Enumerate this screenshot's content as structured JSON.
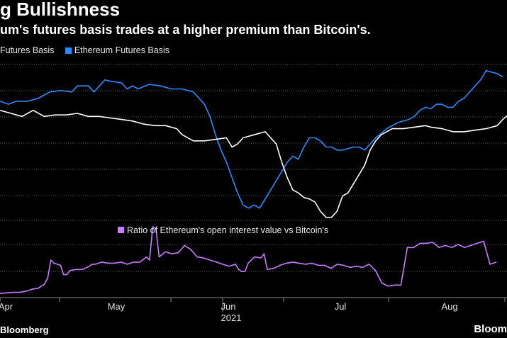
{
  "header": {
    "title": "g Bullishness",
    "subtitle": "um's futures basis trades at a higher premium than Bitcoin's."
  },
  "footer": {
    "source": "Bloomberg",
    "brand": "Bloom"
  },
  "chart_data": [
    {
      "type": "line",
      "legend_placement": "top-left",
      "grid": true,
      "series": [
        {
          "name": "Futures Basis",
          "color": "#ffffff",
          "points": [
            [
              0,
              60
            ],
            [
              4,
              59
            ],
            [
              8,
              58
            ],
            [
              12,
              60
            ],
            [
              16,
              58
            ],
            [
              20,
              58.5
            ],
            [
              24,
              58.5
            ],
            [
              28,
              59
            ],
            [
              32,
              58
            ],
            [
              36,
              58
            ],
            [
              40,
              57.5
            ],
            [
              44,
              57
            ],
            [
              48,
              56.5
            ],
            [
              52,
              55.5
            ],
            [
              56,
              55
            ],
            [
              60,
              55
            ],
            [
              64,
              54
            ],
            [
              66,
              52
            ],
            [
              70,
              50
            ],
            [
              74,
              50
            ],
            [
              78,
              50.5
            ],
            [
              82,
              51
            ],
            [
              84,
              48
            ],
            [
              86,
              49
            ],
            [
              88,
              51
            ],
            [
              92,
              52
            ],
            [
              96,
              53
            ],
            [
              100,
              49
            ],
            [
              102,
              43
            ],
            [
              104,
              38
            ],
            [
              106,
              34
            ],
            [
              108,
              33
            ],
            [
              110,
              31.5
            ],
            [
              112,
              31
            ],
            [
              114,
              30
            ],
            [
              116,
              27
            ],
            [
              118,
              25
            ],
            [
              120,
              25
            ],
            [
              122,
              27
            ],
            [
              124,
              32
            ],
            [
              126,
              33
            ],
            [
              128,
              36
            ],
            [
              130,
              39
            ],
            [
              132,
              42
            ],
            [
              134,
              47
            ],
            [
              136,
              50
            ],
            [
              138,
              52
            ],
            [
              140,
              53
            ],
            [
              142,
              54
            ],
            [
              146,
              54
            ],
            [
              150,
              54.5
            ],
            [
              154,
              55
            ],
            [
              156,
              54.5
            ],
            [
              160,
              54
            ],
            [
              164,
              53
            ],
            [
              168,
              53
            ],
            [
              172,
              53.5
            ],
            [
              176,
              54
            ],
            [
              180,
              55
            ],
            [
              182,
              57
            ],
            [
              186,
              60
            ],
            [
              188,
              62
            ],
            [
              190,
              61
            ],
            [
              194,
              62
            ],
            [
              196,
              63
            ],
            [
              198,
              63.5
            ],
            [
              202,
              65
            ],
            [
              206,
              67
            ],
            [
              208,
              69
            ],
            [
              210,
              71
            ],
            [
              212,
              70
            ],
            [
              214,
              68
            ]
          ]
        },
        {
          "name": "Ethereum Futures Basis",
          "color": "#2c8bff",
          "points": [
            [
              0,
              63
            ],
            [
              3,
              62
            ],
            [
              6,
              63
            ],
            [
              10,
              63
            ],
            [
              14,
              64
            ],
            [
              18,
              66
            ],
            [
              22,
              66.5
            ],
            [
              26,
              66
            ],
            [
              28,
              68
            ],
            [
              32,
              68
            ],
            [
              34,
              66
            ],
            [
              36,
              68
            ],
            [
              38,
              70
            ],
            [
              40,
              69.5
            ],
            [
              44,
              69
            ],
            [
              46,
              67
            ],
            [
              48,
              68
            ],
            [
              50,
              67
            ],
            [
              54,
              68.5
            ],
            [
              58,
              68
            ],
            [
              62,
              67
            ],
            [
              66,
              67
            ],
            [
              70,
              66
            ],
            [
              72,
              64
            ],
            [
              74,
              62
            ],
            [
              76,
              58
            ],
            [
              78,
              52
            ],
            [
              80,
              47
            ],
            [
              82,
              43
            ],
            [
              84,
              38
            ],
            [
              86,
              33
            ],
            [
              88,
              29
            ],
            [
              90,
              28
            ],
            [
              92,
              29
            ],
            [
              94,
              28
            ],
            [
              96,
              31
            ],
            [
              98,
              34
            ],
            [
              100,
              37
            ],
            [
              102,
              40
            ],
            [
              104,
              43
            ],
            [
              106,
              45
            ],
            [
              108,
              44
            ],
            [
              110,
              48
            ],
            [
              112,
              51
            ],
            [
              114,
              51
            ],
            [
              116,
              50
            ],
            [
              118,
              48
            ],
            [
              120,
              48
            ],
            [
              122,
              47
            ],
            [
              124,
              47
            ],
            [
              126,
              47.5
            ],
            [
              128,
              48
            ],
            [
              130,
              48
            ],
            [
              132,
              47
            ],
            [
              134,
              49
            ],
            [
              136,
              51
            ],
            [
              138,
              52.5
            ],
            [
              140,
              54
            ],
            [
              142,
              55
            ],
            [
              144,
              56
            ],
            [
              148,
              57
            ],
            [
              150,
              58
            ],
            [
              152,
              60
            ],
            [
              154,
              61
            ],
            [
              156,
              60.5
            ],
            [
              158,
              62
            ],
            [
              160,
              62
            ],
            [
              162,
              61
            ],
            [
              164,
              61
            ],
            [
              166,
              63
            ],
            [
              168,
              64
            ],
            [
              170,
              66
            ],
            [
              172,
              68
            ],
            [
              174,
              70
            ],
            [
              176,
              73
            ],
            [
              178,
              72.5
            ],
            [
              180,
              72
            ],
            [
              182,
              71
            ]
          ]
        }
      ]
    },
    {
      "type": "line",
      "legend_placement": "top-center",
      "series": [
        {
          "name": "Ratio of Ethereum's open interest value vs Bitcoin's",
          "color": "#c67dff",
          "points": [
            [
              0,
              0.6
            ],
            [
              4,
              0.65
            ],
            [
              6,
              0.65
            ],
            [
              8,
              0.7
            ],
            [
              10,
              0.8
            ],
            [
              12,
              0.85
            ],
            [
              14,
              1.05
            ],
            [
              15,
              1.35
            ],
            [
              16,
              2.2
            ],
            [
              17,
              2.05
            ],
            [
              18,
              2.0
            ],
            [
              19,
              1.95
            ],
            [
              20,
              1.5
            ],
            [
              21,
              1.5
            ],
            [
              22,
              1.7
            ],
            [
              24,
              1.75
            ],
            [
              26,
              1.75
            ],
            [
              28,
              1.9
            ],
            [
              29,
              2.0
            ],
            [
              30,
              2.0
            ],
            [
              32,
              2.1
            ],
            [
              34,
              2.05
            ],
            [
              36,
              2.05
            ],
            [
              38,
              2.1
            ],
            [
              40,
              2.0
            ],
            [
              42,
              2.1
            ],
            [
              44,
              2.1
            ],
            [
              46,
              2.35
            ],
            [
              47,
              2.2
            ],
            [
              48,
              3.8
            ],
            [
              49,
              3.7
            ],
            [
              50,
              2.35
            ],
            [
              52,
              2.6
            ],
            [
              54,
              2.5
            ],
            [
              56,
              2.55
            ],
            [
              58,
              2.9
            ],
            [
              59,
              2.8
            ],
            [
              60,
              2.7
            ],
            [
              62,
              2.35
            ],
            [
              64,
              2.3
            ],
            [
              66,
              2.2
            ],
            [
              68,
              2.1
            ],
            [
              70,
              2.0
            ],
            [
              72,
              1.9
            ],
            [
              74,
              2.0
            ],
            [
              75,
              1.75
            ],
            [
              76,
              1.65
            ],
            [
              77,
              1.65
            ],
            [
              78,
              2.05
            ],
            [
              80,
              2.35
            ],
            [
              82,
              2.3
            ],
            [
              83,
              2.5
            ],
            [
              84,
              1.75
            ],
            [
              86,
              1.8
            ],
            [
              88,
              1.95
            ],
            [
              90,
              2.05
            ],
            [
              92,
              2.1
            ],
            [
              94,
              2.05
            ],
            [
              96,
              2.0
            ],
            [
              98,
              2.05
            ],
            [
              100,
              1.95
            ],
            [
              102,
              1.95
            ],
            [
              104,
              1.8
            ],
            [
              106,
              2.0
            ],
            [
              108,
              1.95
            ],
            [
              110,
              1.85
            ],
            [
              112,
              1.9
            ],
            [
              114,
              1.85
            ],
            [
              116,
              2.0
            ],
            [
              118,
              1.7
            ],
            [
              120,
              1.1
            ],
            [
              122,
              0.95
            ],
            [
              124,
              1.0
            ],
            [
              126,
              1.0
            ],
            [
              128,
              2.8
            ],
            [
              130,
              2.8
            ],
            [
              132,
              3.0
            ],
            [
              134,
              3.0
            ],
            [
              136,
              3.05
            ],
            [
              138,
              2.8
            ],
            [
              140,
              2.9
            ],
            [
              142,
              2.8
            ],
            [
              144,
              2.95
            ],
            [
              146,
              2.8
            ],
            [
              148,
              2.9
            ],
            [
              150,
              3.0
            ],
            [
              152,
              3.1
            ],
            [
              154,
              2.0
            ],
            [
              156,
              2.1
            ]
          ]
        }
      ]
    }
  ],
  "x_axis": {
    "labels": [
      {
        "text": "Apr",
        "x": 0
      },
      {
        "text": "May",
        "x": 45
      },
      {
        "text": "Jun",
        "x": 90
      },
      {
        "text": "Jul",
        "x": 135
      },
      {
        "text": "Aug",
        "x": 180
      }
    ],
    "year_label": "2021"
  }
}
